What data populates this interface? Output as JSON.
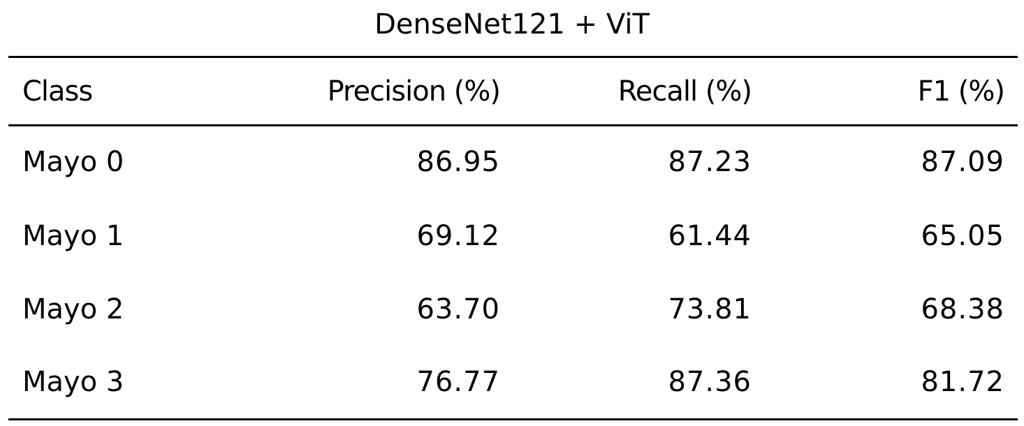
{
  "table": {
    "title": "DenseNet121 + ViT",
    "headers": [
      "Class",
      "Precision (%)",
      "Recall (%)",
      "F1 (%)"
    ],
    "rows": [
      [
        "Mayo 0",
        "86.95",
        "87.23",
        "87.09"
      ],
      [
        "Mayo 1",
        "69.12",
        "61.44",
        "65.05"
      ],
      [
        "Mayo 2",
        "63.70",
        "73.81",
        "68.38"
      ],
      [
        "Mayo 3",
        "76.77",
        "87.36",
        "81.72"
      ]
    ]
  }
}
